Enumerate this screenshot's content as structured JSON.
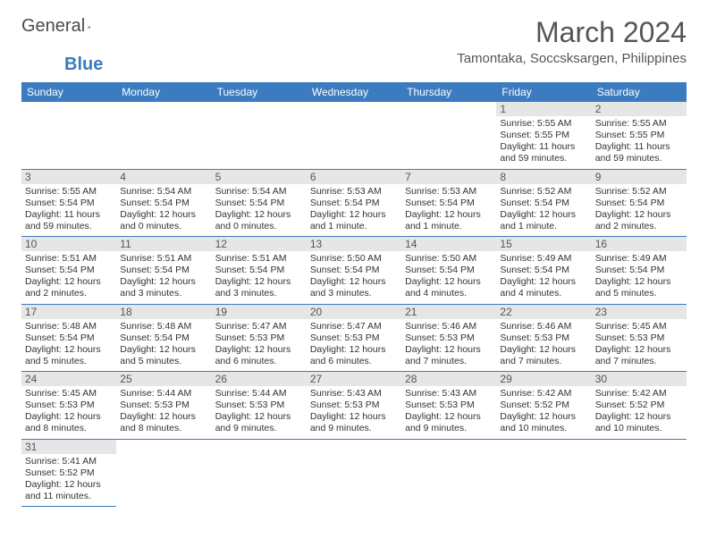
{
  "logo": {
    "text1": "General",
    "text2": "Blue"
  },
  "title": "March 2024",
  "location": "Tamontaka, Soccsksargen, Philippines",
  "colors": {
    "header_bg": "#3b7bbf",
    "header_text": "#ffffff",
    "daynum_bg": "#e6e6e6",
    "row_border": "#3b7bbf",
    "page_bg": "#ffffff",
    "text": "#333333"
  },
  "weekdays": [
    "Sunday",
    "Monday",
    "Tuesday",
    "Wednesday",
    "Thursday",
    "Friday",
    "Saturday"
  ],
  "weeks": [
    [
      null,
      null,
      null,
      null,
      null,
      {
        "n": "1",
        "sr": "5:55 AM",
        "ss": "5:55 PM",
        "dl": "11 hours and 59 minutes."
      },
      {
        "n": "2",
        "sr": "5:55 AM",
        "ss": "5:55 PM",
        "dl": "11 hours and 59 minutes."
      }
    ],
    [
      {
        "n": "3",
        "sr": "5:55 AM",
        "ss": "5:54 PM",
        "dl": "11 hours and 59 minutes."
      },
      {
        "n": "4",
        "sr": "5:54 AM",
        "ss": "5:54 PM",
        "dl": "12 hours and 0 minutes."
      },
      {
        "n": "5",
        "sr": "5:54 AM",
        "ss": "5:54 PM",
        "dl": "12 hours and 0 minutes."
      },
      {
        "n": "6",
        "sr": "5:53 AM",
        "ss": "5:54 PM",
        "dl": "12 hours and 1 minute."
      },
      {
        "n": "7",
        "sr": "5:53 AM",
        "ss": "5:54 PM",
        "dl": "12 hours and 1 minute."
      },
      {
        "n": "8",
        "sr": "5:52 AM",
        "ss": "5:54 PM",
        "dl": "12 hours and 1 minute."
      },
      {
        "n": "9",
        "sr": "5:52 AM",
        "ss": "5:54 PM",
        "dl": "12 hours and 2 minutes."
      }
    ],
    [
      {
        "n": "10",
        "sr": "5:51 AM",
        "ss": "5:54 PM",
        "dl": "12 hours and 2 minutes."
      },
      {
        "n": "11",
        "sr": "5:51 AM",
        "ss": "5:54 PM",
        "dl": "12 hours and 3 minutes."
      },
      {
        "n": "12",
        "sr": "5:51 AM",
        "ss": "5:54 PM",
        "dl": "12 hours and 3 minutes."
      },
      {
        "n": "13",
        "sr": "5:50 AM",
        "ss": "5:54 PM",
        "dl": "12 hours and 3 minutes."
      },
      {
        "n": "14",
        "sr": "5:50 AM",
        "ss": "5:54 PM",
        "dl": "12 hours and 4 minutes."
      },
      {
        "n": "15",
        "sr": "5:49 AM",
        "ss": "5:54 PM",
        "dl": "12 hours and 4 minutes."
      },
      {
        "n": "16",
        "sr": "5:49 AM",
        "ss": "5:54 PM",
        "dl": "12 hours and 5 minutes."
      }
    ],
    [
      {
        "n": "17",
        "sr": "5:48 AM",
        "ss": "5:54 PM",
        "dl": "12 hours and 5 minutes."
      },
      {
        "n": "18",
        "sr": "5:48 AM",
        "ss": "5:54 PM",
        "dl": "12 hours and 5 minutes."
      },
      {
        "n": "19",
        "sr": "5:47 AM",
        "ss": "5:53 PM",
        "dl": "12 hours and 6 minutes."
      },
      {
        "n": "20",
        "sr": "5:47 AM",
        "ss": "5:53 PM",
        "dl": "12 hours and 6 minutes."
      },
      {
        "n": "21",
        "sr": "5:46 AM",
        "ss": "5:53 PM",
        "dl": "12 hours and 7 minutes."
      },
      {
        "n": "22",
        "sr": "5:46 AM",
        "ss": "5:53 PM",
        "dl": "12 hours and 7 minutes."
      },
      {
        "n": "23",
        "sr": "5:45 AM",
        "ss": "5:53 PM",
        "dl": "12 hours and 7 minutes."
      }
    ],
    [
      {
        "n": "24",
        "sr": "5:45 AM",
        "ss": "5:53 PM",
        "dl": "12 hours and 8 minutes."
      },
      {
        "n": "25",
        "sr": "5:44 AM",
        "ss": "5:53 PM",
        "dl": "12 hours and 8 minutes."
      },
      {
        "n": "26",
        "sr": "5:44 AM",
        "ss": "5:53 PM",
        "dl": "12 hours and 9 minutes."
      },
      {
        "n": "27",
        "sr": "5:43 AM",
        "ss": "5:53 PM",
        "dl": "12 hours and 9 minutes."
      },
      {
        "n": "28",
        "sr": "5:43 AM",
        "ss": "5:53 PM",
        "dl": "12 hours and 9 minutes."
      },
      {
        "n": "29",
        "sr": "5:42 AM",
        "ss": "5:52 PM",
        "dl": "12 hours and 10 minutes."
      },
      {
        "n": "30",
        "sr": "5:42 AM",
        "ss": "5:52 PM",
        "dl": "12 hours and 10 minutes."
      }
    ],
    [
      {
        "n": "31",
        "sr": "5:41 AM",
        "ss": "5:52 PM",
        "dl": "12 hours and 11 minutes."
      },
      null,
      null,
      null,
      null,
      null,
      null
    ]
  ],
  "labels": {
    "sunrise": "Sunrise: ",
    "sunset": "Sunset: ",
    "daylight": "Daylight: "
  }
}
